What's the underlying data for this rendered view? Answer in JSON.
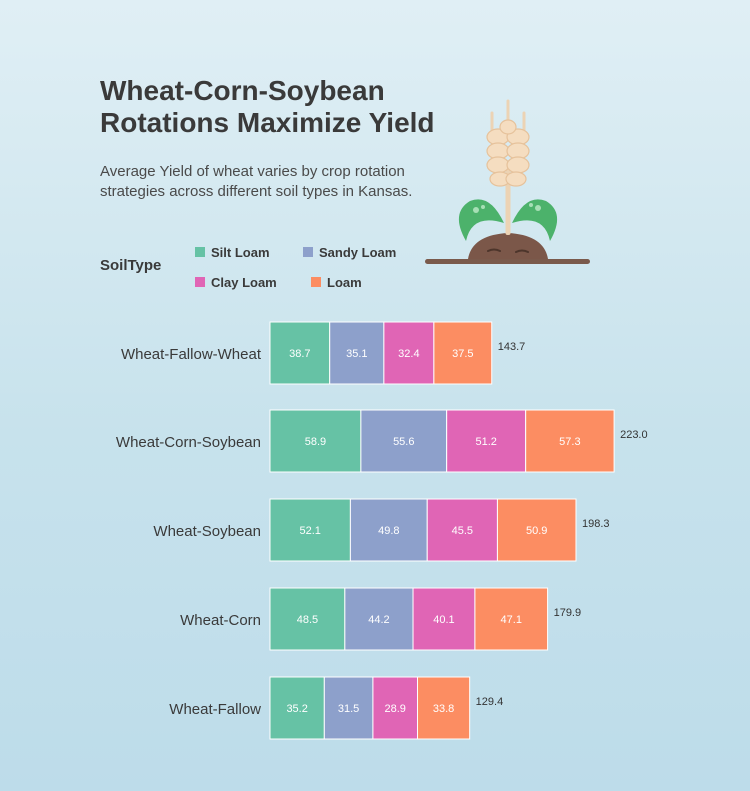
{
  "title_lines": [
    "Wheat-Corn-Soybean",
    "Rotations Maximize Yield"
  ],
  "subtitle_lines": [
    "Average Yield of wheat varies by crop rotation",
    "strategies across different soil types in Kansas."
  ],
  "legend": {
    "title": "SoilType",
    "items": [
      {
        "label": "Silt Loam",
        "color": "#66c2a5"
      },
      {
        "label": "Sandy Loam",
        "color": "#8da0cb"
      },
      {
        "label": "Clay Loam",
        "color": "#e065b5"
      },
      {
        "label": "Loam",
        "color": "#fc8d62"
      }
    ]
  },
  "chart_data": {
    "type": "bar",
    "orientation": "horizontal",
    "stacked": true,
    "categories": [
      "Wheat-Fallow-Wheat",
      "Wheat-Corn-Soybean",
      "Wheat-Soybean",
      "Wheat-Corn",
      "Wheat-Fallow"
    ],
    "series": [
      {
        "name": "Silt Loam",
        "color": "#66c2a5",
        "values": [
          38.7,
          58.9,
          52.1,
          48.5,
          35.2
        ]
      },
      {
        "name": "Sandy Loam",
        "color": "#8da0cb",
        "values": [
          35.1,
          55.6,
          49.8,
          44.2,
          31.5
        ]
      },
      {
        "name": "Clay Loam",
        "color": "#e065b5",
        "values": [
          32.4,
          51.2,
          45.5,
          40.1,
          28.9
        ]
      },
      {
        "name": "Loam",
        "color": "#fc8d62",
        "values": [
          37.5,
          57.3,
          50.9,
          47.1,
          33.8
        ]
      }
    ],
    "totals": [
      "143.7",
      "223.0",
      "198.3",
      "179.9",
      "129.4"
    ],
    "segment_labels": [
      [
        "38.7",
        "35.1",
        "32.4",
        "37.5"
      ],
      [
        "58.9",
        "55.6",
        "51.2",
        "57.3"
      ],
      [
        "52.1",
        "49.8",
        "45.5",
        "50.9"
      ],
      [
        "48.5",
        "44.2",
        "40.1",
        "47.1"
      ],
      [
        "35.2",
        "31.5",
        "28.9",
        "33.8"
      ]
    ],
    "grid": false,
    "legend_position": "top-left"
  }
}
